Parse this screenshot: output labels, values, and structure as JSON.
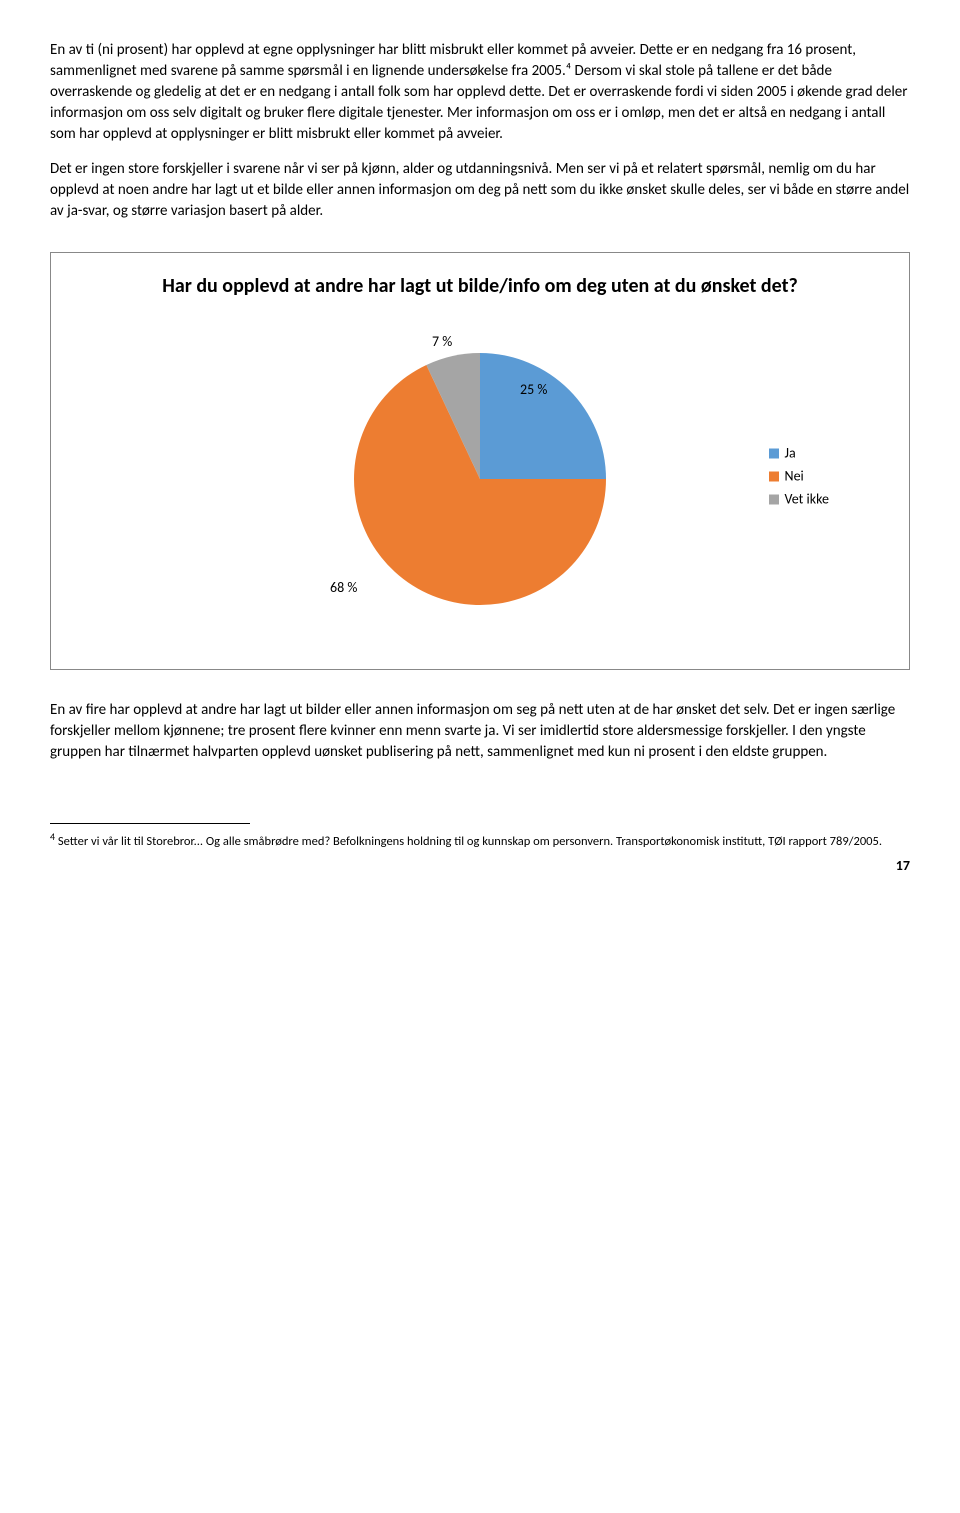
{
  "paragraphs": {
    "p1": "En av ti (ni prosent) har opplevd at egne opplysninger har blitt misbrukt eller kommet på avveier. Dette er en nedgang fra 16 prosent, sammenlignet med svarene på samme spørsmål i en lignende undersøkelse fra 2005.⁴ Dersom vi skal stole på tallene er det både overraskende og gledelig at det er en nedgang i antall folk som har opplevd dette. Det er overraskende fordi vi siden 2005 i økende grad deler informasjon om oss selv digitalt og bruker flere digitale tjenester. Mer informasjon om oss er i omløp, men det er altså en nedgang i antall som har opplevd at opplysninger er blitt misbrukt eller kommet på avveier.",
    "p2": "Det er ingen store forskjeller i svarene når vi ser på kjønn, alder og utdanningsnivå. Men ser vi på et relatert spørsmål, nemlig om du har opplevd at noen andre har lagt ut et bilde eller annen informasjon om deg på nett som du ikke ønsket skulle deles, ser vi både en større andel av ja-svar, og større variasjon basert på alder.",
    "p3": "En av fire har opplevd at andre har lagt ut bilder eller annen informasjon om seg på nett uten at de har ønsket det selv. Det er ingen særlige forskjeller mellom kjønnene; tre prosent flere kvinner enn menn svarte ja. Vi ser imidlertid store aldersmessige forskjeller. I den yngste gruppen har tilnærmet halvparten opplevd uønsket publisering på nett, sammenlignet med kun ni prosent i den eldste gruppen."
  },
  "chart": {
    "type": "pie",
    "title": "Har du opplevd at andre har lagt ut bilde/info om deg uten at du ønsket det?",
    "slices": [
      {
        "label": "Ja",
        "value": 25,
        "display": "25 %",
        "color": "#5b9bd5"
      },
      {
        "label": "Nei",
        "value": 68,
        "display": "68 %",
        "color": "#ed7d31"
      },
      {
        "label": "Vet ikke",
        "value": 7,
        "display": "7 %",
        "color": "#a5a5a5"
      }
    ],
    "label_fontsize": 14,
    "title_fontsize": 20,
    "background_color": "#ffffff",
    "border_color": "#888888",
    "start_angle_deg": -90
  },
  "footnote": {
    "marker": "4",
    "text": "Setter vi vår lit til Storebror... Og alle småbrødre med? Befolkningens holdning til og kunnskap om personvern. Transportøkonomisk institutt, TØI rapport 789/2005."
  },
  "page_number": "17"
}
